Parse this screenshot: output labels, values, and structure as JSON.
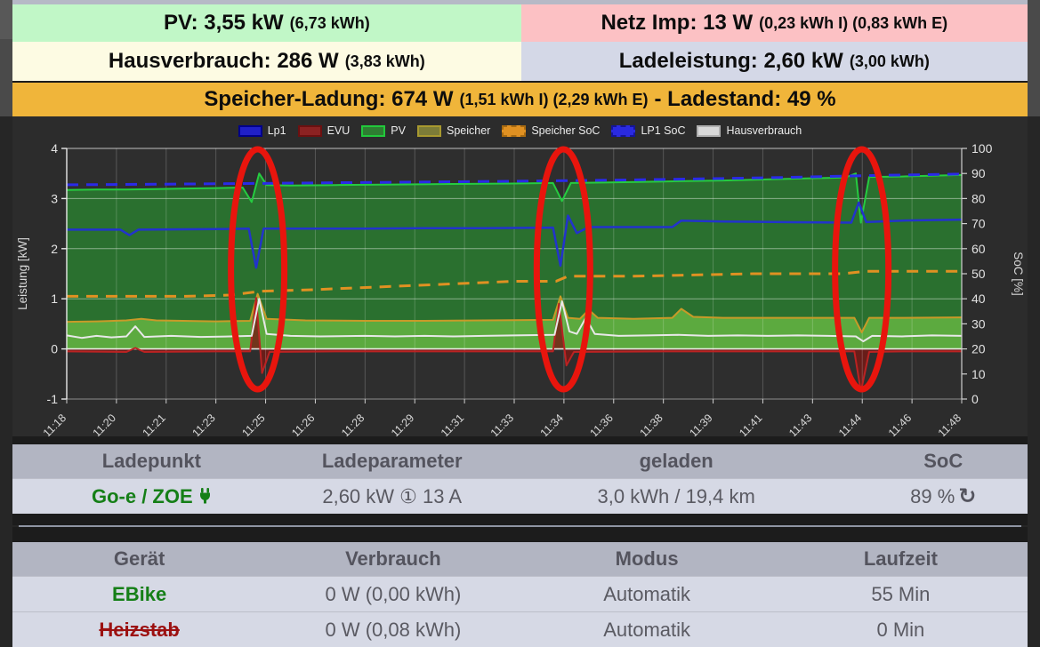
{
  "banners": {
    "pv": {
      "main": "PV: 3,55 kW",
      "detail": "(6,73 kWh)",
      "bg": "#c1f7c7"
    },
    "netz": {
      "main": "Netz Imp: 13 W",
      "detail": "(0,23 kWh I) (0,83 kWh E)",
      "bg": "#fcc1c4"
    },
    "haus": {
      "main": "Hausverbrauch: 286 W",
      "detail": "(3,83 kWh)",
      "bg": "#fdfbe3"
    },
    "lade": {
      "main": "Ladeleistung: 2,60 kW",
      "detail": "(3,00 kWh)",
      "bg": "#d4d8e7"
    },
    "speicher": {
      "main1": "Speicher-Ladung: 674 W",
      "detail": "(1,51 kWh I) (2,29 kWh E)",
      "main2": "- Ladestand: 49 %",
      "bg": "#f0b53a"
    }
  },
  "chart_data": {
    "type": "line",
    "x_labels": [
      "11:18",
      "11:20",
      "11:21",
      "11:23",
      "11:25",
      "11:26",
      "11:28",
      "11:29",
      "11:31",
      "11:33",
      "11:34",
      "11:36",
      "11:38",
      "11:39",
      "11:41",
      "11:43",
      "11:44",
      "11:46",
      "11:48"
    ],
    "x_range_min": [
      0,
      30
    ],
    "ylabel_left": "Leistung [kW]",
    "ylabel_right": "SoC [%]",
    "ylim_kw": [
      -1,
      4
    ],
    "yticks_kw": [
      4,
      3,
      2,
      1,
      0,
      -1
    ],
    "ylim_soc": [
      0,
      100
    ],
    "yticks_soc": [
      100,
      90,
      80,
      70,
      60,
      50,
      40,
      30,
      20,
      10,
      0
    ],
    "grid": true,
    "legend_position": "top",
    "legend": [
      {
        "label": "Lp1",
        "bg": "#2020c8",
        "border": "#00008b",
        "dashed": false
      },
      {
        "label": "EVU",
        "bg": "#8b2222",
        "border": "#6b1010",
        "dashed": false
      },
      {
        "label": "PV",
        "bg": "#2e7d32",
        "border": "#21c93b",
        "dashed": false
      },
      {
        "label": "Speicher",
        "bg": "#7c7c38",
        "border": "#a8992f",
        "dashed": false
      },
      {
        "label": "Speicher SoC",
        "bg": "#e09122",
        "border": "#a86a10",
        "dashed": true
      },
      {
        "label": "LP1 SoC",
        "bg": "#2a2ae0",
        "border": "#14149a",
        "dashed": true
      },
      {
        "label": "Hausverbrauch",
        "bg": "#d9d9d9",
        "border": "#b0b0b0",
        "dashed": false
      }
    ],
    "series": [
      {
        "name": "PV",
        "axis": "kw",
        "kind": "area",
        "color": "#25cc40",
        "fill": "rgba(42,118,48,0.92)",
        "width": 2,
        "points": [
          [
            0,
            3.17
          ],
          [
            1,
            3.18
          ],
          [
            2,
            3.18
          ],
          [
            3,
            3.19
          ],
          [
            4,
            3.2
          ],
          [
            5,
            3.21
          ],
          [
            5.9,
            3.22
          ],
          [
            6.2,
            2.93
          ],
          [
            6.45,
            3.5
          ],
          [
            6.7,
            3.27
          ],
          [
            7.5,
            3.26
          ],
          [
            9,
            3.27
          ],
          [
            11,
            3.28
          ],
          [
            13,
            3.29
          ],
          [
            15,
            3.3
          ],
          [
            16.3,
            3.31
          ],
          [
            16.6,
            2.95
          ],
          [
            16.9,
            3.31
          ],
          [
            18,
            3.32
          ],
          [
            20,
            3.34
          ],
          [
            22,
            3.36
          ],
          [
            24,
            3.39
          ],
          [
            26.1,
            3.42
          ],
          [
            26.45,
            3.5
          ],
          [
            26.62,
            2.52
          ],
          [
            26.9,
            3.43
          ],
          [
            28,
            3.44
          ],
          [
            30,
            3.47
          ]
        ]
      },
      {
        "name": "Speicher",
        "axis": "kw",
        "kind": "area",
        "color": "#c89a28",
        "fill": "rgba(110,190,70,0.75)",
        "width": 2,
        "points": [
          [
            0,
            0.54
          ],
          [
            1,
            0.55
          ],
          [
            2,
            0.57
          ],
          [
            2.5,
            0.6
          ],
          [
            3,
            0.57
          ],
          [
            5,
            0.55
          ],
          [
            6.15,
            0.56
          ],
          [
            6.4,
            1.1
          ],
          [
            6.7,
            0.6
          ],
          [
            8,
            0.57
          ],
          [
            10,
            0.56
          ],
          [
            12,
            0.56
          ],
          [
            14,
            0.57
          ],
          [
            16.3,
            0.58
          ],
          [
            16.55,
            1.05
          ],
          [
            16.8,
            0.62
          ],
          [
            17.2,
            0.6
          ],
          [
            17.5,
            0.78
          ],
          [
            17.8,
            0.62
          ],
          [
            19,
            0.6
          ],
          [
            20.3,
            0.62
          ],
          [
            20.6,
            0.8
          ],
          [
            21,
            0.64
          ],
          [
            22,
            0.62
          ],
          [
            24,
            0.62
          ],
          [
            26.4,
            0.62
          ],
          [
            26.65,
            0.33
          ],
          [
            26.9,
            0.62
          ],
          [
            28,
            0.62
          ],
          [
            30,
            0.63
          ]
        ]
      },
      {
        "name": "EVU",
        "axis": "kw",
        "kind": "area",
        "color": "#bb2222",
        "fill": "rgba(120,25,20,0.80)",
        "width": 2,
        "points": [
          [
            0,
            -0.05
          ],
          [
            2,
            -0.06
          ],
          [
            2.3,
            0.02
          ],
          [
            2.6,
            -0.06
          ],
          [
            5,
            -0.05
          ],
          [
            6.15,
            -0.05
          ],
          [
            6.35,
            1.02
          ],
          [
            6.55,
            -0.48
          ],
          [
            6.8,
            -0.06
          ],
          [
            9,
            -0.05
          ],
          [
            12,
            -0.05
          ],
          [
            16.3,
            -0.05
          ],
          [
            16.5,
            0.9
          ],
          [
            16.75,
            -0.33
          ],
          [
            17,
            -0.06
          ],
          [
            20,
            -0.05
          ],
          [
            24,
            -0.05
          ],
          [
            26.4,
            -0.05
          ],
          [
            26.62,
            -0.85
          ],
          [
            26.9,
            -0.06
          ],
          [
            28,
            -0.05
          ],
          [
            30,
            -0.05
          ]
        ]
      },
      {
        "name": "Hausverbrauch",
        "axis": "kw",
        "kind": "line",
        "color": "#e8e8e8",
        "width": 2,
        "points": [
          [
            0,
            0.27
          ],
          [
            0.5,
            0.22
          ],
          [
            1,
            0.26
          ],
          [
            1.5,
            0.23
          ],
          [
            2,
            0.25
          ],
          [
            2.3,
            0.45
          ],
          [
            2.6,
            0.24
          ],
          [
            3.5,
            0.26
          ],
          [
            4.5,
            0.24
          ],
          [
            5.5,
            0.25
          ],
          [
            6.2,
            0.26
          ],
          [
            6.45,
            1.0
          ],
          [
            6.7,
            0.3
          ],
          [
            7.5,
            0.26
          ],
          [
            8.5,
            0.25
          ],
          [
            10,
            0.26
          ],
          [
            11,
            0.25
          ],
          [
            12,
            0.26
          ],
          [
            13,
            0.25
          ],
          [
            14,
            0.26
          ],
          [
            15,
            0.27
          ],
          [
            16.35,
            0.28
          ],
          [
            16.6,
            0.95
          ],
          [
            16.85,
            0.35
          ],
          [
            17.1,
            0.3
          ],
          [
            17.4,
            0.62
          ],
          [
            17.7,
            0.3
          ],
          [
            18.5,
            0.26
          ],
          [
            19.5,
            0.27
          ],
          [
            20.5,
            0.28
          ],
          [
            21.5,
            0.26
          ],
          [
            22.5,
            0.27
          ],
          [
            23.5,
            0.26
          ],
          [
            24.5,
            0.27
          ],
          [
            25.5,
            0.26
          ],
          [
            26.45,
            0.25
          ],
          [
            26.7,
            0.15
          ],
          [
            27,
            0.26
          ],
          [
            28,
            0.25
          ],
          [
            29,
            0.27
          ],
          [
            30,
            0.26
          ]
        ]
      },
      {
        "name": "Lp1",
        "axis": "kw",
        "kind": "line",
        "color": "#2233cc",
        "width": 2.5,
        "points": [
          [
            0,
            2.38
          ],
          [
            1.8,
            2.38
          ],
          [
            2.1,
            2.27
          ],
          [
            2.4,
            2.38
          ],
          [
            5,
            2.39
          ],
          [
            6.1,
            2.4
          ],
          [
            6.35,
            1.62
          ],
          [
            6.6,
            2.4
          ],
          [
            8,
            2.4
          ],
          [
            10,
            2.4
          ],
          [
            12,
            2.41
          ],
          [
            14,
            2.41
          ],
          [
            16.3,
            2.42
          ],
          [
            16.55,
            1.66
          ],
          [
            16.8,
            2.66
          ],
          [
            17.1,
            2.31
          ],
          [
            17.5,
            2.43
          ],
          [
            19,
            2.43
          ],
          [
            20.3,
            2.43
          ],
          [
            20.6,
            2.56
          ],
          [
            22,
            2.54
          ],
          [
            24,
            2.53
          ],
          [
            26.3,
            2.52
          ],
          [
            26.55,
            2.92
          ],
          [
            26.8,
            2.53
          ],
          [
            28,
            2.56
          ],
          [
            30,
            2.58
          ]
        ]
      },
      {
        "name": "Speicher SoC",
        "axis": "soc",
        "kind": "line",
        "color": "#e09122",
        "width": 3,
        "dash": "13 9",
        "points": [
          [
            0,
            41
          ],
          [
            4,
            41
          ],
          [
            5.5,
            41.5
          ],
          [
            6.5,
            43
          ],
          [
            8,
            43.5
          ],
          [
            9,
            44
          ],
          [
            11,
            45
          ],
          [
            13,
            46
          ],
          [
            15,
            47
          ],
          [
            16.4,
            47
          ],
          [
            16.8,
            49
          ],
          [
            19,
            49
          ],
          [
            21,
            49.5
          ],
          [
            23,
            50
          ],
          [
            26,
            50
          ],
          [
            26.8,
            51
          ],
          [
            30,
            51
          ]
        ]
      },
      {
        "name": "LP1 SoC",
        "axis": "soc",
        "kind": "line",
        "color": "#2a2ae8",
        "width": 3,
        "dash": "13 9",
        "points": [
          [
            0,
            85.5
          ],
          [
            3,
            85.7
          ],
          [
            6,
            86
          ],
          [
            9,
            86.3
          ],
          [
            12,
            86.6
          ],
          [
            15,
            86.9
          ],
          [
            18,
            87.3
          ],
          [
            21,
            87.8
          ],
          [
            24,
            88.4
          ],
          [
            27,
            89.2
          ],
          [
            30,
            89.8
          ]
        ]
      }
    ],
    "annotations": {
      "type": "ellipse",
      "color": "#e8150d",
      "t_centers": [
        6.4,
        16.65,
        26.65
      ]
    }
  },
  "lp_table": {
    "headers": [
      "Ladepunkt",
      "Ladeparameter",
      "geladen",
      "SoC"
    ],
    "row": {
      "name": "Go-e / ZOE",
      "ladeparameter_power": "2,60 kW",
      "phase_icon": "①",
      "ladeparameter_current": "13 A",
      "geladen": "3,0 kWh / 19,4 km",
      "soc": "89 %",
      "refresh_icon": "↻"
    }
  },
  "device_table": {
    "headers": [
      "Gerät",
      "Verbrauch",
      "Modus",
      "Laufzeit"
    ],
    "rows": [
      {
        "name": "EBike",
        "verbrauch": "0 W (0,00 kWh)",
        "modus": "Automatik",
        "laufzeit": "55 Min"
      },
      {
        "name": "Heizstab",
        "verbrauch": "0 W (0,08 kWh)",
        "modus": "Automatik",
        "laufzeit": "0 Min"
      }
    ]
  }
}
